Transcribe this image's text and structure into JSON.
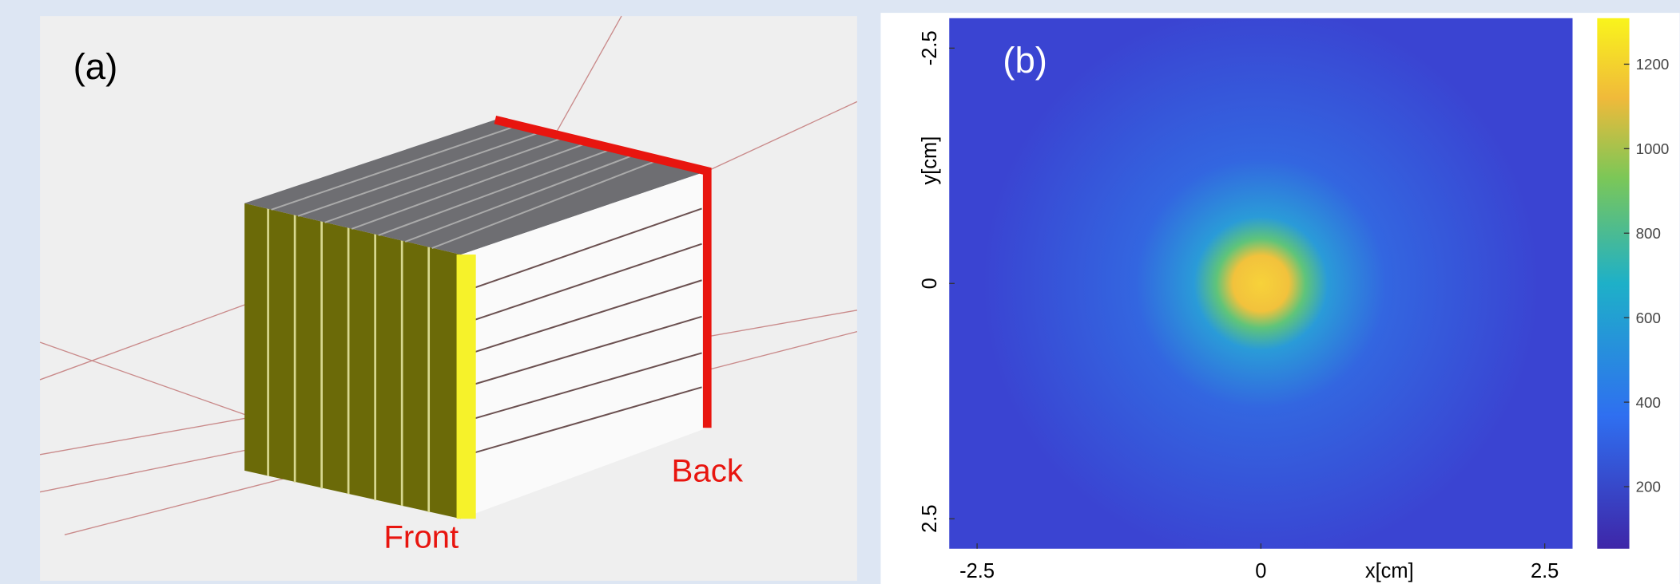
{
  "panel_a": {
    "label": "(a)",
    "annotations": [
      "Front",
      "Back"
    ]
  },
  "panel_b": {
    "label": "(b)",
    "x_label": "x[cm]",
    "y_label": "y[cm]",
    "xticks": [
      -2.5,
      0,
      2.5
    ],
    "yticks": [
      -2.5,
      0,
      2.5
    ],
    "colorbar_ticks": [
      200,
      400,
      600,
      800,
      1000,
      1200
    ]
  }
}
